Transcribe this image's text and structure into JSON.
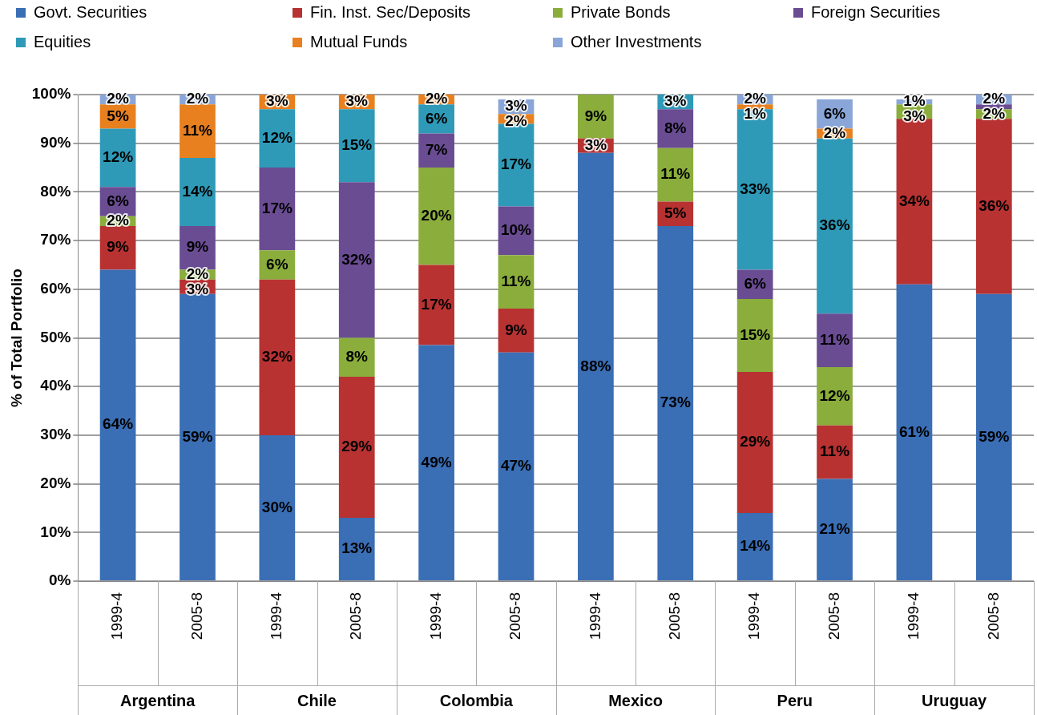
{
  "chart_data": {
    "type": "bar",
    "stacked": true,
    "ylabel": "% of Total Portfolio",
    "grid": "y",
    "legend": "top",
    "categories": [
      "1999-4",
      "2005-8",
      "1999-4",
      "2005-8",
      "1999-4",
      "2005-8",
      "1999-4",
      "2005-8",
      "1999-4",
      "2005-8",
      "1999-4",
      "2005-8"
    ],
    "annotations": [
      "Argentina",
      "Chile",
      "Colombia",
      "Mexico",
      "Peru",
      "Uruguay"
    ],
    "ylim": [
      0,
      100
    ],
    "yticks": [
      {
        "value": 0,
        "label": "0%"
      },
      {
        "value": 10,
        "label": "10%"
      },
      {
        "value": 20,
        "label": "20%"
      },
      {
        "value": 30,
        "label": "30%"
      },
      {
        "value": 40,
        "label": "40%"
      },
      {
        "value": 50,
        "label": "50%"
      },
      {
        "value": 60,
        "label": "60%"
      },
      {
        "value": 70,
        "label": "70%"
      },
      {
        "value": 80,
        "label": "80%"
      },
      {
        "value": 90,
        "label": "90%"
      },
      {
        "value": 100,
        "label": "100%"
      }
    ],
    "series": [
      {
        "name": "Govt. Securities",
        "color": "#3a6eb5",
        "values": [
          64,
          59,
          30,
          13,
          48.5,
          47,
          88,
          73,
          14,
          21,
          61,
          59
        ],
        "value_labels": [
          "64%",
          "59%",
          "30%",
          "13%",
          "49%",
          "47%",
          "88%",
          "73%",
          "14%",
          "21%",
          "61%",
          "59%"
        ]
      },
      {
        "name": "Fin. Inst. Sec/Deposits",
        "color": "#b83232",
        "values": [
          9,
          3,
          32,
          29,
          16.5,
          9,
          3,
          5,
          29,
          11,
          34,
          36
        ],
        "value_labels": [
          "9%",
          "3%",
          "32%",
          "29%",
          "17%",
          "9%",
          "3%",
          "5%",
          "29%",
          "11%",
          "34%",
          "36%"
        ]
      },
      {
        "name": "Private Bonds",
        "color": "#8aad3c",
        "values": [
          2,
          2,
          6,
          8,
          20,
          11,
          9,
          11,
          15,
          12,
          3,
          2
        ],
        "value_labels": [
          "2%",
          "2%",
          "6%",
          "8%",
          "20%",
          "11%",
          "9%",
          "11%",
          "15%",
          "12%",
          "3%",
          "2%"
        ]
      },
      {
        "name": "Foreign Securities",
        "color": "#6a4c93",
        "values": [
          6,
          9,
          17,
          32,
          7,
          10,
          null,
          8,
          6,
          11,
          null,
          1
        ],
        "value_labels": [
          "6%",
          "9%",
          "17%",
          "32%",
          "7%",
          "10%",
          null,
          "8%",
          "6%",
          "11%",
          null,
          null
        ]
      },
      {
        "name": "Equities",
        "color": "#2e9ab8",
        "values": [
          12,
          14,
          12,
          15,
          6,
          17,
          null,
          3,
          33,
          36,
          null,
          null
        ],
        "value_labels": [
          "12%",
          "14%",
          "12%",
          "15%",
          "6%",
          "17%",
          null,
          "3%",
          "33%",
          "36%",
          null,
          null
        ]
      },
      {
        "name": "Mutual Funds",
        "color": "#e8801f",
        "values": [
          5,
          11,
          3,
          3,
          2,
          2,
          null,
          null,
          1,
          2,
          null,
          null
        ],
        "value_labels": [
          "5%",
          "11%",
          "3%",
          "3%",
          "2%",
          "2%",
          null,
          null,
          "1%",
          "2%",
          null,
          null
        ]
      },
      {
        "name": "Other Investments",
        "color": "#8aa6d8",
        "values": [
          2,
          2,
          null,
          null,
          null,
          3,
          null,
          null,
          2,
          6,
          1,
          2
        ],
        "value_labels": [
          "2%",
          "2%",
          null,
          null,
          null,
          "3%",
          null,
          null,
          "2%",
          "6%",
          "1%",
          "2%"
        ]
      }
    ]
  }
}
